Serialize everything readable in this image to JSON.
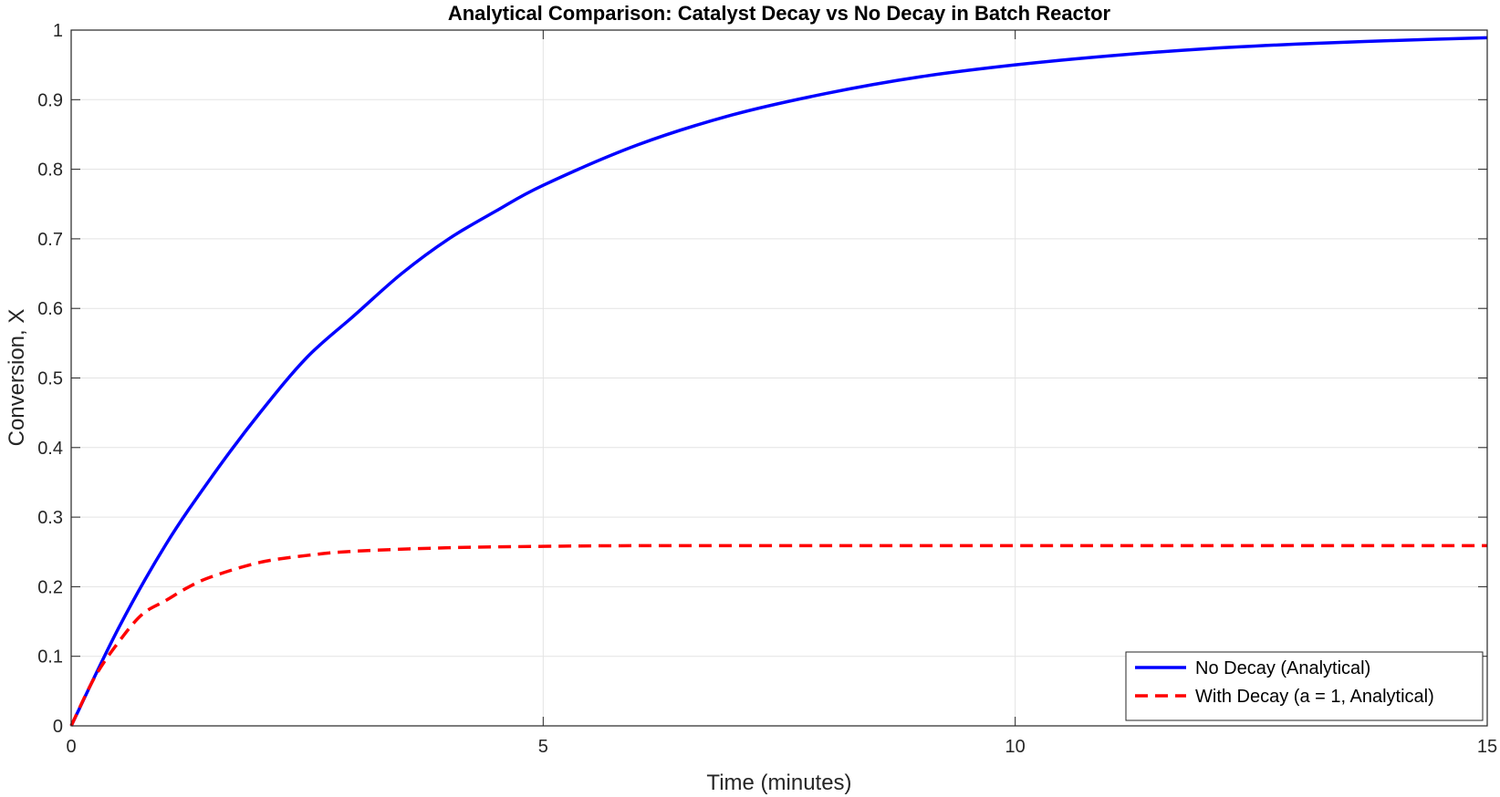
{
  "chart_data": {
    "type": "line",
    "title": "Analytical Comparison: Catalyst Decay vs No Decay in Batch Reactor",
    "xlabel": "Time (minutes)",
    "ylabel": "Conversion, X",
    "xlim": [
      0,
      15
    ],
    "ylim": [
      0,
      1
    ],
    "xticks": [
      0,
      5,
      10,
      15
    ],
    "xtick_labels": [
      "0",
      "5",
      "10",
      "15"
    ],
    "yticks": [
      0,
      0.1,
      0.2,
      0.3,
      0.4,
      0.5,
      0.6,
      0.7,
      0.8,
      0.9,
      1
    ],
    "ytick_labels": [
      "0",
      "0.1",
      "0.2",
      "0.3",
      "0.4",
      "0.5",
      "0.6",
      "0.7",
      "0.8",
      "0.9",
      "1"
    ],
    "grid": true,
    "legend_position": "bottom-right",
    "series": [
      {
        "name": "No Decay (Analytical)",
        "color": "#0000ff",
        "style": "solid",
        "x": [
          0,
          0.5,
          1,
          1.5,
          2,
          2.5,
          3,
          3.5,
          4,
          4.5,
          5,
          6,
          7,
          8,
          9,
          10,
          11,
          12,
          13,
          14,
          15
        ],
        "y": [
          0,
          0.14,
          0.26,
          0.36,
          0.45,
          0.53,
          0.59,
          0.65,
          0.7,
          0.74,
          0.777,
          0.835,
          0.878,
          0.909,
          0.933,
          0.95,
          0.963,
          0.973,
          0.98,
          0.985,
          0.989
        ]
      },
      {
        "name": "With Decay (a = 1, Analytical)",
        "color": "#ff0000",
        "style": "dashed",
        "x": [
          0,
          0.25,
          0.5,
          0.75,
          1,
          1.25,
          1.5,
          2,
          2.5,
          3,
          4,
          5,
          6,
          8,
          10,
          12,
          15
        ],
        "y": [
          0,
          0.07,
          0.12,
          0.16,
          0.18,
          0.2,
          0.215,
          0.235,
          0.245,
          0.251,
          0.256,
          0.258,
          0.259,
          0.259,
          0.259,
          0.259,
          0.259
        ]
      }
    ]
  }
}
